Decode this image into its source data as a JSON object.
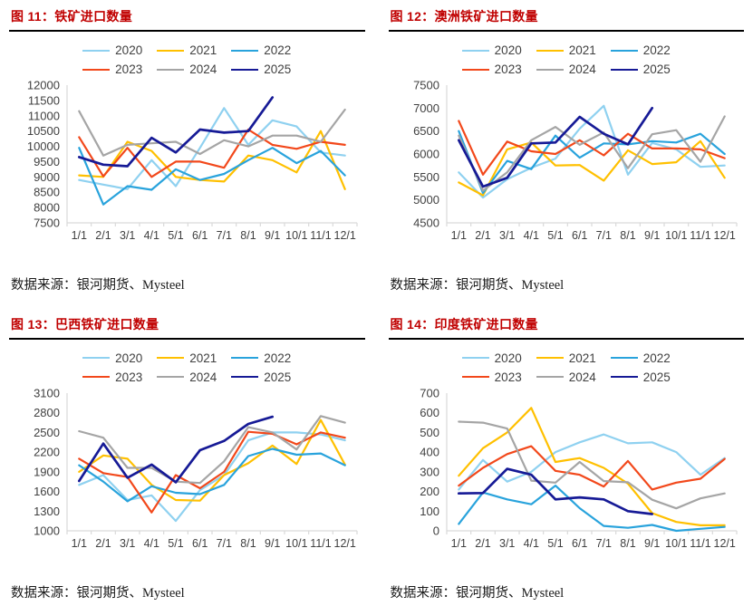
{
  "source_note": "数据来源：银河期货、Mysteel",
  "legend_rows": [
    [
      "2020",
      "2021",
      "2022"
    ],
    [
      "2023",
      "2024",
      "2025"
    ]
  ],
  "colors": {
    "2020": "#8FD1F0",
    "2021": "#FFC000",
    "2022": "#29A3DC",
    "2023": "#F2481B",
    "2024": "#A5A5A5",
    "2025": "#161A96",
    "title_red": "#C00000",
    "axis_text": "#404040",
    "axis_line": "#D9D9D9",
    "title_rule": "#000000"
  },
  "x_labels": [
    "1/1",
    "2/1",
    "3/1",
    "4/1",
    "5/1",
    "6/1",
    "7/1",
    "8/1",
    "9/1",
    "10/1",
    "11/1",
    "12/1"
  ],
  "chart_data": [
    {
      "type": "line",
      "title": "图 11：铁矿进口数量",
      "ylim": [
        7500,
        12000
      ],
      "yticks": [
        7500,
        8000,
        8500,
        9000,
        9500,
        10000,
        10500,
        11000,
        11500,
        12000
      ],
      "categories": [
        "1/1",
        "2/1",
        "3/1",
        "4/1",
        "5/1",
        "6/1",
        "7/1",
        "8/1",
        "9/1",
        "10/1",
        "11/1",
        "12/1"
      ],
      "legend_position": "top",
      "grid": false,
      "series": [
        {
          "name": "2020",
          "values": [
            8900,
            8750,
            8600,
            9550,
            8700,
            9950,
            11250,
            10050,
            10850,
            10650,
            9800,
            9700
          ]
        },
        {
          "name": "2021",
          "values": [
            9050,
            9000,
            10150,
            9850,
            9000,
            8900,
            8850,
            9700,
            9550,
            9150,
            10500,
            8600
          ]
        },
        {
          "name": "2022",
          "values": [
            9950,
            8100,
            8700,
            8580,
            9250,
            8900,
            9100,
            9550,
            9950,
            9450,
            9850,
            9050
          ]
        },
        {
          "name": "2023",
          "values": [
            10300,
            9020,
            9950,
            9000,
            9500,
            9500,
            9300,
            10550,
            10050,
            9920,
            10150,
            10050
          ]
        },
        {
          "name": "2024",
          "values": [
            11150,
            9700,
            10050,
            10100,
            10150,
            9750,
            10200,
            10000,
            10350,
            10350,
            10150,
            11200
          ]
        },
        {
          "name": "2025",
          "values": [
            9650,
            9400,
            9350,
            10280,
            9800,
            10550,
            10450,
            10500,
            11600
          ]
        }
      ]
    },
    {
      "type": "line",
      "title": "图 12：澳洲铁矿进口数量",
      "ylim": [
        4500,
        7500
      ],
      "yticks": [
        4500,
        5000,
        5500,
        6000,
        6500,
        7000,
        7500
      ],
      "categories": [
        "1/1",
        "2/1",
        "3/1",
        "4/1",
        "5/1",
        "6/1",
        "7/1",
        "8/1",
        "9/1",
        "10/1",
        "11/1",
        "12/1"
      ],
      "legend_position": "top",
      "grid": false,
      "series": [
        {
          "name": "2020",
          "values": [
            5600,
            5050,
            5450,
            5700,
            5900,
            6550,
            7050,
            5550,
            6240,
            6100,
            5720,
            5750
          ]
        },
        {
          "name": "2021",
          "values": [
            5380,
            5100,
            6100,
            6250,
            5750,
            5760,
            5420,
            6080,
            5780,
            5820,
            6280,
            5480
          ]
        },
        {
          "name": "2022",
          "values": [
            6500,
            5150,
            5850,
            5670,
            6400,
            5920,
            6230,
            6210,
            6280,
            6250,
            6440,
            6000
          ]
        },
        {
          "name": "2023",
          "values": [
            6720,
            5550,
            6270,
            6060,
            6000,
            6300,
            5970,
            6440,
            6120,
            6120,
            6100,
            5910
          ]
        },
        {
          "name": "2024",
          "values": [
            6400,
            5200,
            5600,
            6300,
            6590,
            6200,
            6470,
            5690,
            6430,
            6520,
            5830,
            6820
          ]
        },
        {
          "name": "2025",
          "values": [
            6300,
            5290,
            5480,
            6230,
            6250,
            6810,
            6440,
            6210,
            7000
          ]
        }
      ]
    },
    {
      "type": "line",
      "title": "图 13：巴西铁矿进口数量",
      "ylim": [
        1000,
        3100
      ],
      "yticks": [
        1000,
        1300,
        1600,
        1900,
        2200,
        2500,
        2800,
        3100
      ],
      "categories": [
        "1/1",
        "2/1",
        "3/1",
        "4/1",
        "5/1",
        "6/1",
        "7/1",
        "8/1",
        "9/1",
        "10/1",
        "11/1",
        "12/1"
      ],
      "legend_position": "top",
      "grid": false,
      "series": [
        {
          "name": "2020",
          "values": [
            1700,
            1850,
            1470,
            1540,
            1150,
            1620,
            1850,
            2380,
            2500,
            2500,
            2470,
            2380
          ]
        },
        {
          "name": "2021",
          "values": [
            1900,
            2150,
            2100,
            1700,
            1470,
            1460,
            1850,
            2030,
            2300,
            2020,
            2690,
            2010
          ]
        },
        {
          "name": "2022",
          "values": [
            2000,
            1750,
            1450,
            1680,
            1580,
            1560,
            1700,
            2140,
            2250,
            2160,
            2180,
            2000
          ]
        },
        {
          "name": "2023",
          "values": [
            2100,
            1880,
            1820,
            1280,
            1850,
            1650,
            1900,
            2510,
            2480,
            2320,
            2500,
            2420
          ]
        },
        {
          "name": "2024",
          "values": [
            2520,
            2420,
            1960,
            1960,
            1750,
            1730,
            2060,
            2580,
            2500,
            2240,
            2750,
            2650
          ]
        },
        {
          "name": "2025",
          "values": [
            1760,
            2330,
            1810,
            2010,
            1740,
            2230,
            2370,
            2630,
            2740
          ]
        }
      ]
    },
    {
      "type": "line",
      "title": "图 14：印度铁矿进口数量",
      "ylim": [
        0,
        700
      ],
      "yticks": [
        0,
        100,
        200,
        300,
        400,
        500,
        600,
        700
      ],
      "categories": [
        "1/1",
        "2/1",
        "3/1",
        "4/1",
        "5/1",
        "6/1",
        "7/1",
        "8/1",
        "9/1",
        "10/1",
        "11/1",
        "12/1"
      ],
      "legend_position": "top",
      "grid": false,
      "series": [
        {
          "name": "2020",
          "values": [
            210,
            360,
            250,
            300,
            400,
            450,
            490,
            445,
            450,
            400,
            285,
            370
          ]
        },
        {
          "name": "2021",
          "values": [
            280,
            420,
            500,
            625,
            350,
            370,
            320,
            240,
            90,
            45,
            28,
            28
          ]
        },
        {
          "name": "2022",
          "values": [
            35,
            195,
            160,
            135,
            230,
            115,
            25,
            15,
            30,
            0,
            10,
            20
          ]
        },
        {
          "name": "2023",
          "values": [
            230,
            320,
            390,
            430,
            305,
            285,
            225,
            355,
            210,
            245,
            265,
            365
          ]
        },
        {
          "name": "2024",
          "values": [
            555,
            550,
            520,
            255,
            245,
            350,
            253,
            247,
            158,
            114,
            165,
            190
          ]
        },
        {
          "name": "2025",
          "values": [
            190,
            192,
            315,
            285,
            160,
            170,
            160,
            100,
            85
          ]
        }
      ]
    }
  ]
}
